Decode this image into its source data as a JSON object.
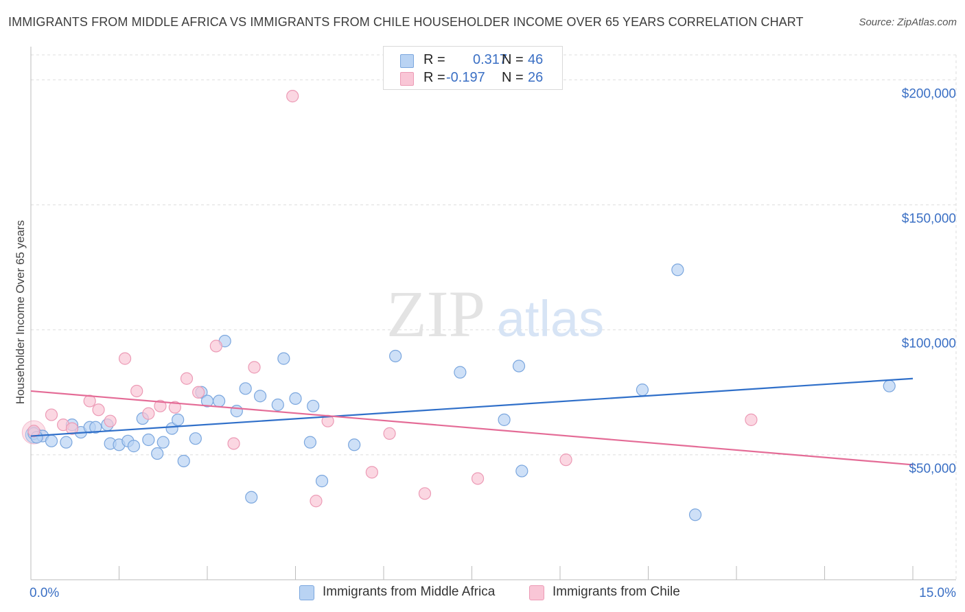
{
  "title": "IMMIGRANTS FROM MIDDLE AFRICA VS IMMIGRANTS FROM CHILE HOUSEHOLDER INCOME OVER 65 YEARS CORRELATION CHART",
  "source": "Source: ZipAtlas.com",
  "watermark": {
    "zip": "ZIP",
    "atlas": "atlas"
  },
  "legend": {
    "r_label": "R =",
    "n_label": "N =",
    "rows": [
      {
        "r": "0.317",
        "n": "46"
      },
      {
        "r": "-0.197",
        "n": "26"
      }
    ]
  },
  "colors": {
    "blue_fill": "#b9d3f3",
    "blue_stroke": "#7aa6de",
    "blue_line": "#2f6fc9",
    "pink_fill": "#f9c6d6",
    "pink_stroke": "#ec9ab5",
    "pink_line": "#e46b96",
    "axis_text": "#3a6fc4",
    "grid": "#dddddd"
  },
  "chart_data": {
    "type": "scatter",
    "title": "IMMIGRANTS FROM MIDDLE AFRICA VS IMMIGRANTS FROM CHILE HOUSEHOLDER INCOME OVER 65 YEARS CORRELATION CHART",
    "xlabel": "",
    "ylabel": "Householder Income Over 65 years",
    "xlim": [
      0,
      15
    ],
    "ylim": [
      0,
      210000
    ],
    "x_tick_labels": [
      "0.0%",
      "15.0%"
    ],
    "y_ticks": [
      50000,
      100000,
      150000,
      200000
    ],
    "y_tick_labels": [
      "$50,000",
      "$100,000",
      "$150,000",
      "$200,000"
    ],
    "grid": true,
    "legend_position": "top-center",
    "series": [
      {
        "name": "Immigrants from Middle Africa",
        "r": 0.317,
        "n": 46,
        "trend": {
          "x": [
            0,
            15
          ],
          "y": [
            57500,
            80500
          ]
        },
        "points": [
          {
            "x": 0.05,
            "y": 58500
          },
          {
            "x": 0.2,
            "y": 57500
          },
          {
            "x": 0.35,
            "y": 55500
          },
          {
            "x": 0.6,
            "y": 55000
          },
          {
            "x": 0.7,
            "y": 62000
          },
          {
            "x": 0.85,
            "y": 59000
          },
          {
            "x": 1.0,
            "y": 61000
          },
          {
            "x": 1.1,
            "y": 61000
          },
          {
            "x": 1.3,
            "y": 62000
          },
          {
            "x": 1.35,
            "y": 54500
          },
          {
            "x": 1.5,
            "y": 54000
          },
          {
            "x": 1.65,
            "y": 55500
          },
          {
            "x": 1.75,
            "y": 53500
          },
          {
            "x": 1.9,
            "y": 64500
          },
          {
            "x": 2.0,
            "y": 56000
          },
          {
            "x": 2.15,
            "y": 50500
          },
          {
            "x": 2.25,
            "y": 55000
          },
          {
            "x": 2.4,
            "y": 60500
          },
          {
            "x": 2.5,
            "y": 64000
          },
          {
            "x": 2.6,
            "y": 47500
          },
          {
            "x": 2.8,
            "y": 56500
          },
          {
            "x": 2.9,
            "y": 75000
          },
          {
            "x": 3.0,
            "y": 71500
          },
          {
            "x": 3.2,
            "y": 71500
          },
          {
            "x": 3.3,
            "y": 95500
          },
          {
            "x": 3.5,
            "y": 67500
          },
          {
            "x": 3.65,
            "y": 76500
          },
          {
            "x": 3.75,
            "y": 33000
          },
          {
            "x": 3.9,
            "y": 73500
          },
          {
            "x": 4.2,
            "y": 70000
          },
          {
            "x": 4.3,
            "y": 88500
          },
          {
            "x": 4.5,
            "y": 72500
          },
          {
            "x": 4.75,
            "y": 55000
          },
          {
            "x": 4.8,
            "y": 69500
          },
          {
            "x": 4.95,
            "y": 39500
          },
          {
            "x": 5.5,
            "y": 54000
          },
          {
            "x": 6.2,
            "y": 89500
          },
          {
            "x": 7.3,
            "y": 83000
          },
          {
            "x": 8.05,
            "y": 64000
          },
          {
            "x": 8.3,
            "y": 85500
          },
          {
            "x": 8.35,
            "y": 43500
          },
          {
            "x": 10.4,
            "y": 76000
          },
          {
            "x": 11.0,
            "y": 124000
          },
          {
            "x": 11.3,
            "y": 26000
          },
          {
            "x": 14.6,
            "y": 77500
          },
          {
            "x": 0.1,
            "y": 57000
          }
        ]
      },
      {
        "name": "Immigrants from Chile",
        "r": -0.197,
        "n": 26,
        "trend": {
          "x": [
            0,
            15
          ],
          "y": [
            75500,
            46000
          ]
        },
        "points": [
          {
            "x": 0.05,
            "y": 59500
          },
          {
            "x": 0.35,
            "y": 66000
          },
          {
            "x": 0.55,
            "y": 62000
          },
          {
            "x": 0.7,
            "y": 60500
          },
          {
            "x": 1.0,
            "y": 71500
          },
          {
            "x": 1.15,
            "y": 68000
          },
          {
            "x": 1.35,
            "y": 63500
          },
          {
            "x": 1.6,
            "y": 88500
          },
          {
            "x": 1.8,
            "y": 75500
          },
          {
            "x": 2.0,
            "y": 66500
          },
          {
            "x": 2.2,
            "y": 69500
          },
          {
            "x": 2.45,
            "y": 69000
          },
          {
            "x": 2.65,
            "y": 80500
          },
          {
            "x": 2.85,
            "y": 75000
          },
          {
            "x": 3.15,
            "y": 93500
          },
          {
            "x": 3.45,
            "y": 54500
          },
          {
            "x": 3.8,
            "y": 85000
          },
          {
            "x": 4.45,
            "y": 193500
          },
          {
            "x": 4.85,
            "y": 31500
          },
          {
            "x": 5.05,
            "y": 63500
          },
          {
            "x": 5.8,
            "y": 43000
          },
          {
            "x": 6.1,
            "y": 58500
          },
          {
            "x": 6.7,
            "y": 34500
          },
          {
            "x": 7.6,
            "y": 40500
          },
          {
            "x": 9.1,
            "y": 48000
          },
          {
            "x": 12.25,
            "y": 64000
          }
        ]
      }
    ]
  }
}
